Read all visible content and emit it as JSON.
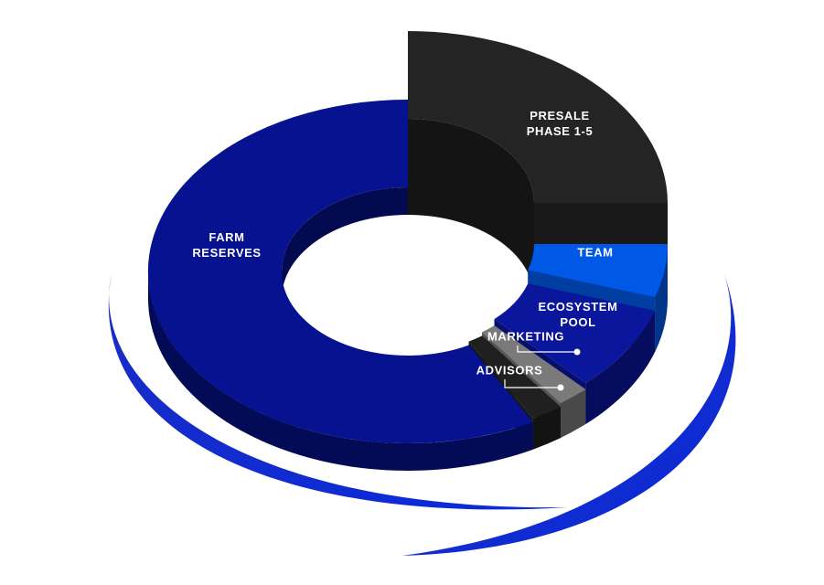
{
  "chart_data": {
    "type": "pie",
    "categories": [
      "PRESALE PHASE 1-5",
      "TEAM",
      "ECOSYSTEM POOL",
      "MARKETING",
      "ADVISORS",
      "FARM RESERVES"
    ],
    "values": [
      25,
      5,
      8,
      2,
      2,
      58
    ],
    "colors": [
      "#242424",
      "#0058e6",
      "#0a169c",
      "#7a7a7a",
      "#202020",
      "#071290"
    ]
  }
}
